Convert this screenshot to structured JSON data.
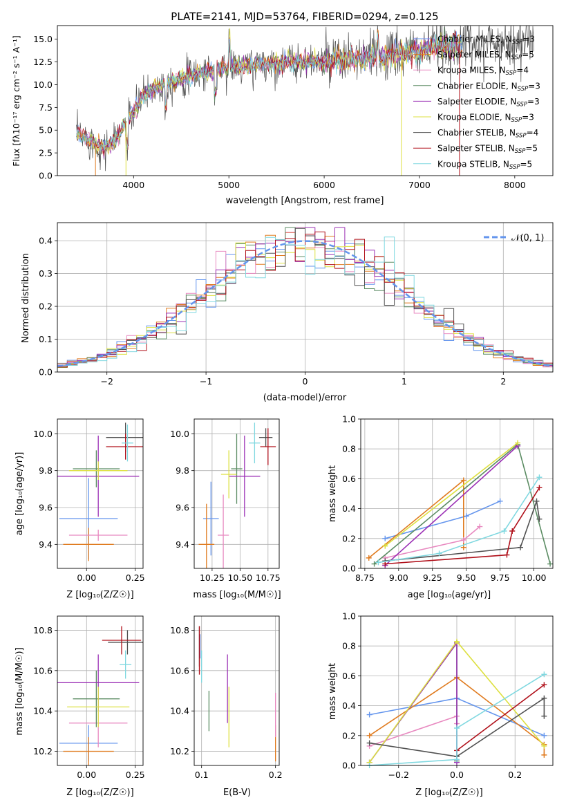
{
  "colors": [
    "#6495ed",
    "#e07b1f",
    "#e889c0",
    "#5b8c63",
    "#9b30b5",
    "#dde040",
    "#505050",
    "#b0101a",
    "#80d8e0"
  ],
  "chart_data": [
    {
      "id": "spectrum",
      "type": "line",
      "title": "PLATE=2141, MJD=53764, FIBERID=0294, z=0.125",
      "xlabel": "wavelength [Angstrom, rest frame]",
      "ylabel": "Flux [fλ10⁻¹⁷ erg cm⁻² s⁻¹ A⁻¹]",
      "xlim": [
        3200,
        8400
      ],
      "ylim": [
        0,
        16.5
      ],
      "xticks": [
        4000,
        5000,
        6000,
        7000,
        8000
      ],
      "yticks": [
        0.0,
        2.5,
        5.0,
        7.5,
        10.0,
        12.5,
        15.0
      ],
      "legend_position": "top-right",
      "continuum": {
        "x": [
          3400,
          3500,
          3600,
          3700,
          3800,
          3900,
          4000,
          4100,
          4200,
          4300,
          4500,
          4700,
          4900,
          5100,
          5300,
          5500,
          5700,
          5900,
          6100,
          6300,
          6500,
          6700,
          6900,
          7100,
          7300,
          7500,
          7700,
          7900,
          8100
        ],
        "y": [
          4.5,
          4.2,
          3.5,
          3.0,
          3.8,
          5.5,
          7.0,
          8.8,
          9.5,
          10.0,
          10.6,
          11.3,
          11.8,
          12.0,
          12.2,
          12.4,
          12.5,
          12.5,
          12.6,
          12.8,
          13.0,
          13.2,
          13.5,
          14.0,
          14.3,
          14.5,
          14.6,
          14.7,
          14.8
        ]
      },
      "series": [
        {
          "name": "Chabrier MILES, N",
          "sub": "SSP",
          "eq": "=3"
        },
        {
          "name": "Salpeter MILES, N",
          "sub": "SSP",
          "eq": "=5"
        },
        {
          "name": "Kroupa MILES, N",
          "sub": "SSP",
          "eq": "=4"
        },
        {
          "name": "Chabrier ELODIE, N",
          "sub": "SSP",
          "eq": "=3"
        },
        {
          "name": "Salpeter ELODIE, N",
          "sub": "SSP",
          "eq": "=3"
        },
        {
          "name": "Kroupa ELODIE, N",
          "sub": "SSP",
          "eq": "=3"
        },
        {
          "name": "Chabrier STELIB, N",
          "sub": "SSP",
          "eq": "=4"
        },
        {
          "name": "Salpeter STELIB, N",
          "sub": "SSP",
          "eq": "=5"
        },
        {
          "name": "Kroupa STELIB, N",
          "sub": "SSP",
          "eq": "=5"
        }
      ]
    },
    {
      "id": "residuals",
      "type": "histogram",
      "xlabel": "(data-model)/error",
      "ylabel": "Normed distribution",
      "xlim": [
        -2.5,
        2.5
      ],
      "ylim": [
        0,
        0.455
      ],
      "xticks": [
        -2,
        -1,
        0,
        1,
        2
      ],
      "yticks": [
        0.0,
        0.1,
        0.2,
        0.3,
        0.4
      ],
      "grid": true,
      "bin_width": 0.1,
      "reference": {
        "name": "𝒩(0, 1)",
        "color": "#6495ed"
      },
      "legend_position": "top-right"
    },
    {
      "id": "age-vs-Z",
      "type": "errorbar",
      "xlabel": "Z [log₁₀(Z/Z☉)]",
      "ylabel": "age  [log₁₀(age/yr)]",
      "xlim": [
        -0.15,
        0.29
      ],
      "ylim": [
        9.27,
        10.08
      ],
      "xticks": [
        0.0,
        0.25
      ],
      "yticks": [
        9.4,
        9.6,
        9.8,
        10.0
      ],
      "grid": true,
      "points": [
        {
          "series": 0,
          "x": 0.01,
          "xerr": 0.15,
          "y": 9.54,
          "yerr": 0.22
        },
        {
          "series": 1,
          "x": 0.01,
          "xerr": 0.13,
          "y": 9.4,
          "yerr": 0.09
        },
        {
          "series": 2,
          "x": 0.06,
          "xerr": 0.15,
          "y": 9.45,
          "yerr": 0.03
        },
        {
          "series": 3,
          "x": 0.05,
          "xerr": 0.12,
          "y": 9.81,
          "yerr": 0.1
        },
        {
          "series": 4,
          "x": 0.06,
          "xerr": 0.21,
          "y": 9.77,
          "yerr": 0.22
        },
        {
          "series": 5,
          "x": 0.06,
          "xerr": 0.15,
          "y": 9.8,
          "yerr": 0.05
        },
        {
          "series": 6,
          "x": 0.2,
          "xerr": 0.1,
          "y": 9.98,
          "yerr": 0.08
        },
        {
          "series": 7,
          "x": 0.2,
          "xerr": 0.1,
          "y": 9.93,
          "yerr": 0.07
        },
        {
          "series": 8,
          "x": 0.21,
          "xerr": 0.03,
          "y": 9.95,
          "yerr": 0.1
        }
      ]
    },
    {
      "id": "age-vs-mass",
      "type": "errorbar",
      "xlabel": "mass [log₁₀(M/M☉)]",
      "ylabel": "",
      "xlim": [
        10.09,
        10.85
      ],
      "ylim": [
        9.27,
        10.08
      ],
      "xticks": [
        10.25,
        10.5,
        10.75
      ],
      "yticks": [
        9.4,
        9.6,
        9.8,
        10.0
      ],
      "grid": true,
      "points": [
        {
          "series": 0,
          "x": 10.24,
          "xerr": 0.07,
          "y": 9.54,
          "yerr": 0.2
        },
        {
          "series": 1,
          "x": 10.2,
          "xerr": 0.07,
          "y": 9.4,
          "yerr": 0.22
        },
        {
          "series": 2,
          "x": 10.35,
          "xerr": 0.05,
          "y": 9.45,
          "yerr": 0.22
        },
        {
          "series": 3,
          "x": 10.47,
          "xerr": 0.05,
          "y": 9.81,
          "yerr": 0.19
        },
        {
          "series": 4,
          "x": 10.54,
          "xerr": 0.14,
          "y": 9.77,
          "yerr": 0.22
        },
        {
          "series": 5,
          "x": 10.4,
          "xerr": 0.07,
          "y": 9.78,
          "yerr": 0.13
        },
        {
          "series": 6,
          "x": 10.73,
          "xerr": 0.06,
          "y": 9.98,
          "yerr": 0.05
        },
        {
          "series": 7,
          "x": 10.75,
          "xerr": 0.07,
          "y": 9.93,
          "yerr": 0.1
        },
        {
          "series": 8,
          "x": 10.63,
          "xerr": 0.05,
          "y": 9.95,
          "yerr": 0.11
        }
      ]
    },
    {
      "id": "weight-vs-age",
      "type": "line",
      "xlabel": "age  [log₁₀(age/yr)]",
      "ylabel": "mass weight",
      "xlim": [
        8.72,
        10.14
      ],
      "ylim": [
        0,
        1.0
      ],
      "xticks": [
        8.75,
        9.0,
        9.25,
        9.5,
        9.75,
        10.0
      ],
      "yticks": [
        0.0,
        0.2,
        0.4,
        0.6,
        0.8,
        1.0
      ],
      "grid": true,
      "series": [
        {
          "series": 0,
          "x": [
            8.9,
            9.5,
            9.75
          ],
          "y": [
            0.2,
            0.35,
            0.45
          ]
        },
        {
          "series": 1,
          "x": [
            8.78,
            9.48,
            9.48
          ],
          "y": [
            0.07,
            0.59,
            0.14
          ]
        },
        {
          "series": 2,
          "x": [
            8.9,
            9.48,
            9.6
          ],
          "y": [
            0.07,
            0.19,
            0.28
          ]
        },
        {
          "series": 3,
          "x": [
            8.82,
            9.88,
            10.12
          ],
          "y": [
            0.03,
            0.83,
            0.03
          ]
        },
        {
          "series": 4,
          "x": [
            8.9,
            9.88,
            8.9
          ],
          "y": [
            0.02,
            0.82,
            0.02
          ]
        },
        {
          "series": 5,
          "x": [
            8.9,
            9.88,
            8.9
          ],
          "y": [
            0.15,
            0.84,
            0.15
          ]
        },
        {
          "series": 6,
          "x": [
            8.9,
            9.9,
            10.02,
            10.04
          ],
          "y": [
            0.05,
            0.14,
            0.45,
            0.33
          ]
        },
        {
          "series": 7,
          "x": [
            8.9,
            9.8,
            9.84,
            10.04
          ],
          "y": [
            0.03,
            0.09,
            0.25,
            0.54
          ]
        },
        {
          "series": 8,
          "x": [
            8.85,
            9.3,
            9.78,
            10.04
          ],
          "y": [
            0.04,
            0.1,
            0.25,
            0.61
          ]
        }
      ]
    },
    {
      "id": "mass-vs-Z",
      "type": "errorbar",
      "xlabel": "Z [log₁₀(Z/Z☉)]",
      "ylabel": "mass [log₁₀(M/M☉)]",
      "xlim": [
        -0.15,
        0.29
      ],
      "ylim": [
        10.13,
        10.87
      ],
      "xticks": [
        0.0,
        0.25
      ],
      "yticks": [
        10.2,
        10.4,
        10.6,
        10.8
      ],
      "grid": true,
      "points": [
        {
          "series": 0,
          "x": 0.01,
          "xerr": 0.15,
          "y": 10.24,
          "yerr": 0.09
        },
        {
          "series": 1,
          "x": 0.01,
          "xerr": 0.13,
          "y": 10.2,
          "yerr": 0.07
        },
        {
          "series": 2,
          "x": 0.06,
          "xerr": 0.15,
          "y": 10.34,
          "yerr": 0.12
        },
        {
          "series": 3,
          "x": 0.05,
          "xerr": 0.12,
          "y": 10.46,
          "yerr": 0.14
        },
        {
          "series": 4,
          "x": 0.06,
          "xerr": 0.21,
          "y": 10.54,
          "yerr": 0.14
        },
        {
          "series": 5,
          "x": 0.06,
          "xerr": 0.16,
          "y": 10.42,
          "yerr": 0.1
        },
        {
          "series": 6,
          "x": 0.21,
          "xerr": 0.1,
          "y": 10.74,
          "yerr": 0.06
        },
        {
          "series": 7,
          "x": 0.18,
          "xerr": 0.1,
          "y": 10.75,
          "yerr": 0.07
        },
        {
          "series": 8,
          "x": 0.2,
          "xerr": 0.03,
          "y": 10.63,
          "yerr": 0.07
        }
      ]
    },
    {
      "id": "mass-vs-ebv",
      "type": "errorbar",
      "xlabel": "E(B-V)",
      "ylabel": "",
      "xlim": [
        0.09,
        0.205
      ],
      "ylim": [
        10.13,
        10.87
      ],
      "xticks": [
        0.1,
        0.2
      ],
      "yticks": [
        10.2,
        10.4,
        10.6,
        10.8
      ],
      "grid": true,
      "points": [
        {
          "series": 0,
          "x": 0.098,
          "xerr": 0,
          "y": 10.72,
          "yerr": 0.06
        },
        {
          "series": 1,
          "x": 0.2,
          "xerr": 0,
          "y": 10.24,
          "yerr": 0.09
        },
        {
          "series": 2,
          "x": 0.2,
          "xerr": 0,
          "y": 10.38,
          "yerr": 0.11
        },
        {
          "series": 3,
          "x": 0.11,
          "xerr": 0,
          "y": 10.4,
          "yerr": 0.1
        },
        {
          "series": 4,
          "x": 0.135,
          "xerr": 0,
          "y": 10.51,
          "yerr": 0.17
        },
        {
          "series": 5,
          "x": 0.137,
          "xerr": 0,
          "y": 10.37,
          "yerr": 0.15
        },
        {
          "series": 6,
          "x": 0.097,
          "xerr": 0,
          "y": 10.72,
          "yerr": 0.1
        },
        {
          "series": 7,
          "x": 0.097,
          "xerr": 0,
          "y": 10.7,
          "yerr": 0.12
        },
        {
          "series": 8,
          "x": 0.1,
          "xerr": 0,
          "y": 10.62,
          "yerr": 0.08
        }
      ]
    },
    {
      "id": "weight-vs-Z",
      "type": "line",
      "xlabel": "Z [log₁₀(Z/Z☉)]",
      "ylabel": "mass weight",
      "xlim": [
        -0.33,
        0.33
      ],
      "ylim": [
        0,
        1.0
      ],
      "xticks": [
        -0.2,
        0.0,
        0.2
      ],
      "yticks": [
        0.0,
        0.2,
        0.4,
        0.6,
        0.8,
        1.0
      ],
      "grid": true,
      "series": [
        {
          "series": 0,
          "x": [
            -0.3,
            0.0,
            0.3
          ],
          "y": [
            0.34,
            0.45,
            0.2
          ]
        },
        {
          "series": 1,
          "x": [
            -0.3,
            0.0,
            0.3,
            0.3
          ],
          "y": [
            0.2,
            0.59,
            0.14,
            0.07
          ]
        },
        {
          "series": 2,
          "x": [
            -0.3,
            0.0,
            0.0
          ],
          "y": [
            0.13,
            0.33,
            0.28
          ]
        },
        {
          "series": 3,
          "x": [
            -0.3,
            0.0,
            0.0
          ],
          "y": [
            0.02,
            0.82,
            0.03
          ]
        },
        {
          "series": 4,
          "x": [
            -0.3,
            0.0,
            0.0
          ],
          "y": [
            0.02,
            0.82,
            0.02
          ]
        },
        {
          "series": 5,
          "x": [
            -0.3,
            0.0,
            0.3
          ],
          "y": [
            0.02,
            0.83,
            0.13
          ]
        },
        {
          "series": 6,
          "x": [
            -0.3,
            0.0,
            0.3,
            0.3
          ],
          "y": [
            0.15,
            0.06,
            0.45,
            0.33
          ]
        },
        {
          "series": 7,
          "x": [
            0.0,
            0.3
          ],
          "y": [
            0.1,
            0.54
          ]
        },
        {
          "series": 8,
          "x": [
            -0.3,
            0.0,
            0.0,
            0.3
          ],
          "y": [
            0.0,
            0.04,
            0.25,
            0.61
          ]
        }
      ]
    }
  ]
}
